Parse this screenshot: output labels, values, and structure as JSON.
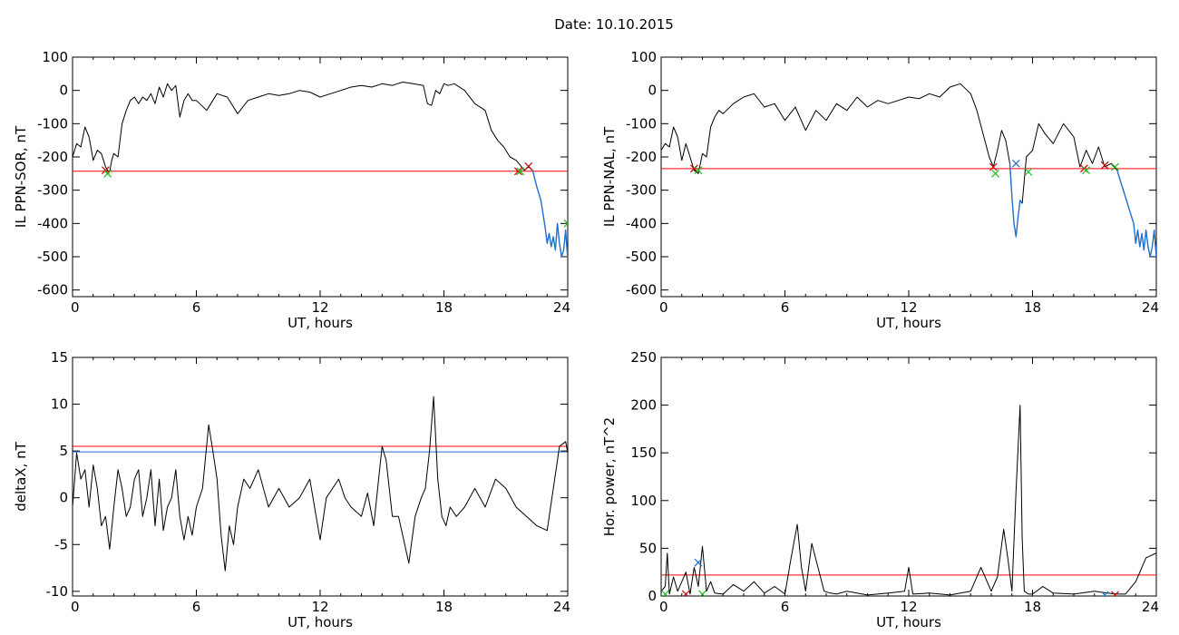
{
  "page": {
    "title": "Date:  10.10.2015"
  },
  "colors": {
    "trace": "#000000",
    "threshold_red": "#ff0000",
    "threshold_blue": "#1e6fd0",
    "storm_segment": "#1e6fd0",
    "marker_red": "#cc0000",
    "marker_green": "#22bb22",
    "marker_blue": "#1e6fd0"
  },
  "chart_data": [
    {
      "id": "sor",
      "type": "line",
      "xlabel": "UT, hours",
      "ylabel": "IL PPN-SOR, nT",
      "xlim": [
        0,
        24
      ],
      "ylim": [
        -620,
        100
      ],
      "xticks": [
        0,
        6,
        12,
        18,
        24
      ],
      "yticks": [
        100,
        0,
        -100,
        -200,
        -300,
        -400,
        -500,
        -600
      ],
      "grid": false,
      "hlines": [
        {
          "y": -243,
          "color": "red"
        }
      ],
      "series": [
        {
          "color": "black",
          "x": [
            0,
            0.2,
            0.4,
            0.6,
            0.8,
            1.0,
            1.2,
            1.4,
            1.6,
            1.7,
            1.8,
            1.9,
            2.0,
            2.2,
            2.4,
            2.6,
            2.8,
            3.0,
            3.2,
            3.4,
            3.6,
            3.8,
            4.0,
            4.2,
            4.4,
            4.6,
            4.8,
            5.0,
            5.2,
            5.4,
            5.6,
            5.8,
            6.0,
            6.5,
            7.0,
            7.5,
            8.0,
            8.5,
            9.0,
            9.5,
            10.0,
            10.5,
            11.0,
            11.5,
            12.0,
            12.5,
            13.0,
            13.5,
            14.0,
            14.5,
            15.0,
            15.5,
            16.0,
            16.5,
            17.0,
            17.2,
            17.4,
            17.6,
            17.8,
            18.0,
            18.2,
            18.5,
            19.0,
            19.5,
            20.0,
            20.3,
            20.6,
            20.9,
            21.2,
            21.5,
            21.7,
            21.9,
            22.1,
            22.3
          ],
          "y": [
            -200,
            -160,
            -170,
            -110,
            -140,
            -210,
            -180,
            -190,
            -230,
            -240,
            -245,
            -210,
            -190,
            -200,
            -100,
            -60,
            -30,
            -20,
            -40,
            -20,
            -30,
            -10,
            -40,
            10,
            -20,
            20,
            0,
            15,
            -80,
            -30,
            -10,
            -30,
            -30,
            -60,
            -10,
            -20,
            -70,
            -30,
            -20,
            -10,
            -15,
            -10,
            0,
            -5,
            -20,
            -10,
            0,
            10,
            15,
            10,
            20,
            15,
            25,
            20,
            15,
            -40,
            -45,
            0,
            -10,
            20,
            15,
            20,
            0,
            -40,
            -60,
            -120,
            -150,
            -170,
            -200,
            -210,
            -225,
            -240,
            -230,
            -240
          ]
        },
        {
          "color": "blue",
          "x": [
            22.3,
            22.5,
            22.7,
            22.9,
            23.0,
            23.1,
            23.2,
            23.3,
            23.4,
            23.5,
            23.6,
            23.7,
            23.8,
            23.9,
            24.0
          ],
          "y": [
            -240,
            -290,
            -330,
            -410,
            -460,
            -430,
            -470,
            -440,
            -480,
            -400,
            -460,
            -500,
            -480,
            -420,
            -510
          ]
        }
      ],
      "markers": [
        {
          "x": 1.6,
          "y": -240,
          "color": "red"
        },
        {
          "x": 1.7,
          "y": -250,
          "color": "green"
        },
        {
          "x": 21.6,
          "y": -243,
          "color": "red"
        },
        {
          "x": 21.7,
          "y": -243,
          "color": "green"
        },
        {
          "x": 22.1,
          "y": -228,
          "color": "red"
        },
        {
          "x": 24.0,
          "y": -400,
          "color": "green"
        }
      ]
    },
    {
      "id": "nal",
      "type": "line",
      "xlabel": "UT, hours",
      "ylabel": "IL PPN-NAL, nT",
      "xlim": [
        0,
        24
      ],
      "ylim": [
        -620,
        100
      ],
      "xticks": [
        0,
        6,
        12,
        18,
        24
      ],
      "yticks": [
        100,
        0,
        -100,
        -200,
        -300,
        -400,
        -500,
        -600
      ],
      "grid": false,
      "hlines": [
        {
          "y": -235,
          "color": "red"
        }
      ],
      "series": [
        {
          "color": "black",
          "x": [
            0,
            0.2,
            0.4,
            0.6,
            0.8,
            1.0,
            1.2,
            1.4,
            1.6,
            1.8,
            2.0,
            2.2,
            2.4,
            2.6,
            2.8,
            3.0,
            3.5,
            4.0,
            4.5,
            5.0,
            5.5,
            6.0,
            6.5,
            7.0,
            7.5,
            8.0,
            8.5,
            9.0,
            9.5,
            10.0,
            10.5,
            11.0,
            11.5,
            12.0,
            12.5,
            13.0,
            13.5,
            14.0,
            14.5,
            15.0,
            15.3,
            15.6,
            15.9,
            16.1,
            16.3,
            16.5,
            16.7,
            16.9
          ],
          "y": [
            -180,
            -160,
            -170,
            -110,
            -140,
            -210,
            -160,
            -200,
            -240,
            -250,
            -190,
            -200,
            -110,
            -80,
            -60,
            -70,
            -40,
            -20,
            -10,
            -50,
            -40,
            -90,
            -50,
            -120,
            -60,
            -90,
            -40,
            -60,
            -20,
            -50,
            -30,
            -40,
            -30,
            -20,
            -25,
            -10,
            -20,
            10,
            20,
            -10,
            -60,
            -130,
            -200,
            -230,
            -180,
            -120,
            -150,
            -220
          ]
        },
        {
          "color": "blue",
          "x": [
            16.9,
            17.0,
            17.1,
            17.2,
            17.3,
            17.4,
            17.5
          ],
          "y": [
            -220,
            -320,
            -400,
            -440,
            -380,
            -330,
            -340
          ]
        },
        {
          "color": "black",
          "x": [
            17.5,
            17.7,
            18.0,
            18.3,
            18.6,
            19.0,
            19.5,
            20.0,
            20.3,
            20.6,
            20.9,
            21.2,
            21.5,
            21.8,
            22.1
          ],
          "y": [
            -340,
            -200,
            -180,
            -100,
            -130,
            -160,
            -100,
            -140,
            -230,
            -180,
            -220,
            -170,
            -230,
            -220,
            -240
          ]
        },
        {
          "color": "blue",
          "x": [
            22.1,
            22.3,
            22.5,
            22.7,
            22.9,
            23.0,
            23.1,
            23.2,
            23.3,
            23.4,
            23.5,
            23.6,
            23.7,
            23.8,
            23.9,
            24.0
          ],
          "y": [
            -240,
            -280,
            -320,
            -360,
            -400,
            -460,
            -420,
            -470,
            -430,
            -480,
            -420,
            -470,
            -500,
            -470,
            -420,
            -500
          ]
        }
      ],
      "markers": [
        {
          "x": 1.6,
          "y": -235,
          "color": "red"
        },
        {
          "x": 1.8,
          "y": -240,
          "color": "green"
        },
        {
          "x": 16.1,
          "y": -230,
          "color": "red"
        },
        {
          "x": 16.2,
          "y": -250,
          "color": "green"
        },
        {
          "x": 17.2,
          "y": -220,
          "color": "blue"
        },
        {
          "x": 17.8,
          "y": -245,
          "color": "green"
        },
        {
          "x": 20.5,
          "y": -235,
          "color": "red"
        },
        {
          "x": 20.6,
          "y": -240,
          "color": "green"
        },
        {
          "x": 21.5,
          "y": -225,
          "color": "red"
        },
        {
          "x": 22.0,
          "y": -230,
          "color": "green"
        }
      ]
    },
    {
      "id": "deltax",
      "type": "line",
      "xlabel": "UT, hours",
      "ylabel": "deltaX, nT",
      "xlim": [
        0,
        24
      ],
      "ylim": [
        -10.5,
        15
      ],
      "xticks": [
        0,
        6,
        12,
        18,
        24
      ],
      "yticks": [
        15,
        10,
        5,
        0,
        -5,
        -10
      ],
      "grid": false,
      "hlines": [
        {
          "y": 5.5,
          "color": "red"
        },
        {
          "y": 4.9,
          "color": "blue"
        }
      ],
      "series": [
        {
          "color": "black",
          "x": [
            0,
            0.2,
            0.4,
            0.6,
            0.8,
            1.0,
            1.2,
            1.4,
            1.6,
            1.8,
            2.0,
            2.2,
            2.4,
            2.6,
            2.8,
            3.0,
            3.2,
            3.4,
            3.6,
            3.8,
            4.0,
            4.2,
            4.4,
            4.6,
            4.8,
            5.0,
            5.2,
            5.4,
            5.6,
            5.8,
            6.0,
            6.3,
            6.6,
            6.8,
            7.0,
            7.2,
            7.4,
            7.6,
            7.8,
            8.0,
            8.3,
            8.6,
            9.0,
            9.5,
            10.0,
            10.5,
            11.0,
            11.5,
            12.0,
            12.3,
            12.6,
            12.9,
            13.2,
            13.5,
            14.0,
            14.3,
            14.6,
            15.0,
            15.2,
            15.5,
            15.8,
            16.0,
            16.3,
            16.6,
            16.9,
            17.1,
            17.3,
            17.5,
            17.7,
            17.9,
            18.1,
            18.3,
            18.6,
            19.0,
            19.5,
            20.0,
            20.5,
            21.0,
            21.5,
            22.0,
            22.5,
            23.0,
            23.3,
            23.6,
            23.9,
            24.0
          ],
          "y": [
            -1,
            4.8,
            2,
            3,
            -1,
            3.5,
            1,
            -3,
            -2,
            -5.5,
            -1,
            3,
            1,
            -2,
            -1,
            2,
            3,
            -2,
            0,
            3,
            -3,
            2,
            -3.5,
            -1,
            0,
            3,
            -2,
            -4.5,
            -2,
            -4,
            -1,
            1,
            7.8,
            5,
            2,
            -4,
            -7.8,
            -3,
            -5,
            -1,
            2,
            1,
            3,
            -1,
            1,
            -1,
            0,
            2,
            -4.5,
            0,
            1,
            2,
            0,
            -1,
            -2,
            0.5,
            -3,
            5.5,
            4,
            -2,
            -2,
            -4,
            -7,
            -2,
            0,
            1,
            5,
            10.8,
            2,
            -2,
            -3,
            -1,
            -2,
            -1,
            1,
            -1,
            2,
            1,
            -1,
            -2,
            -3,
            -3.5,
            1,
            5.5,
            6,
            4.8
          ]
        }
      ],
      "markers": []
    },
    {
      "id": "power",
      "type": "line",
      "xlabel": "UT, hours",
      "ylabel": "Hor. power, nT^2",
      "xlim": [
        0,
        24
      ],
      "ylim": [
        0,
        250
      ],
      "xticks": [
        0,
        6,
        12,
        18,
        24
      ],
      "yticks": [
        250,
        200,
        150,
        100,
        50,
        0
      ],
      "grid": false,
      "hlines": [
        {
          "y": 22,
          "color": "red"
        }
      ],
      "series": [
        {
          "color": "black",
          "x": [
            0,
            0.2,
            0.3,
            0.4,
            0.6,
            0.8,
            1.0,
            1.2,
            1.4,
            1.6,
            1.8,
            2.0,
            2.2,
            2.4,
            2.6,
            3.0,
            3.5,
            4.0,
            4.5,
            5.0,
            5.5,
            6.0,
            6.3,
            6.6,
            6.8,
            7.0,
            7.3,
            7.6,
            7.9,
            8.2,
            8.5,
            9.0,
            10.0,
            11.0,
            11.8,
            12.0,
            12.2,
            13.0,
            14.0,
            15.0,
            15.5,
            16.0,
            16.3,
            16.6,
            16.8,
            17.0,
            17.2,
            17.4,
            17.5,
            17.6,
            17.8,
            18.0,
            18.5,
            19.0,
            20.0,
            21.0,
            22.0,
            22.5,
            23.0,
            23.5,
            24.0
          ],
          "y": [
            5,
            10,
            45,
            2,
            20,
            5,
            15,
            25,
            2,
            30,
            10,
            52,
            5,
            15,
            3,
            2,
            12,
            5,
            15,
            3,
            10,
            2,
            40,
            75,
            30,
            5,
            55,
            30,
            5,
            3,
            2,
            5,
            1,
            3,
            5,
            30,
            2,
            3,
            1,
            5,
            30,
            5,
            20,
            70,
            40,
            5,
            110,
            200,
            60,
            5,
            2,
            2,
            10,
            3,
            2,
            5,
            2,
            2,
            15,
            40,
            45
          ]
        }
      ],
      "markers": [
        {
          "x": 1.8,
          "y": 35,
          "color": "blue"
        },
        {
          "x": 0.2,
          "y": 2,
          "color": "green"
        },
        {
          "x": 1.2,
          "y": 2,
          "color": "red"
        },
        {
          "x": 2.0,
          "y": 2,
          "color": "green"
        },
        {
          "x": 21.5,
          "y": 1,
          "color": "blue"
        },
        {
          "x": 22.0,
          "y": 1,
          "color": "red"
        }
      ]
    }
  ]
}
